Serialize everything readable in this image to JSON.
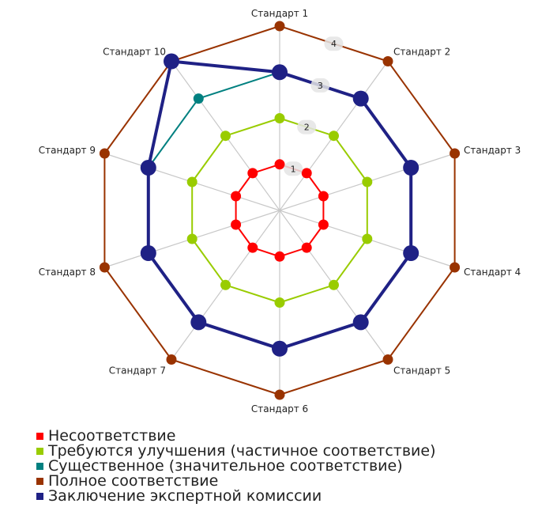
{
  "chart_data": {
    "type": "radar",
    "axes": [
      "Стандарт 1",
      "Стандарт 2",
      "Стандарт 3",
      "Стандарт 4",
      "Стандарт 5",
      "Стандарт 6",
      "Стандарт 7",
      "Стандарт 8",
      "Стандарт 9",
      "Стандарт 10"
    ],
    "scale": {
      "min": 0,
      "max": 4,
      "ticks": [
        "1",
        "2",
        "3",
        "4"
      ]
    },
    "series": [
      {
        "name": "Несоответствие",
        "color": "#ff0000",
        "values": [
          1,
          1,
          1,
          1,
          1,
          1,
          1,
          1,
          1,
          1
        ]
      },
      {
        "name": "Требуются улучшения (частичное соответствие)",
        "color": "#99cc00",
        "values": [
          2,
          2,
          2,
          2,
          2,
          2,
          2,
          2,
          2,
          2
        ]
      },
      {
        "name": "Существенное (значительное соответствие)",
        "color": "#008080",
        "values": [
          3,
          3,
          3,
          3,
          3,
          3,
          3,
          3,
          3,
          3
        ]
      },
      {
        "name": "Полное соответствие",
        "color": "#993300",
        "values": [
          4,
          4,
          4,
          4,
          4,
          4,
          4,
          4,
          4,
          4
        ]
      },
      {
        "name": "Заключение экспертной комиссии",
        "color": "#1f2185",
        "values": [
          3,
          3,
          3,
          3,
          3,
          3,
          3,
          3,
          3,
          4
        ]
      }
    ],
    "grid": true,
    "legend_position": "bottom"
  }
}
